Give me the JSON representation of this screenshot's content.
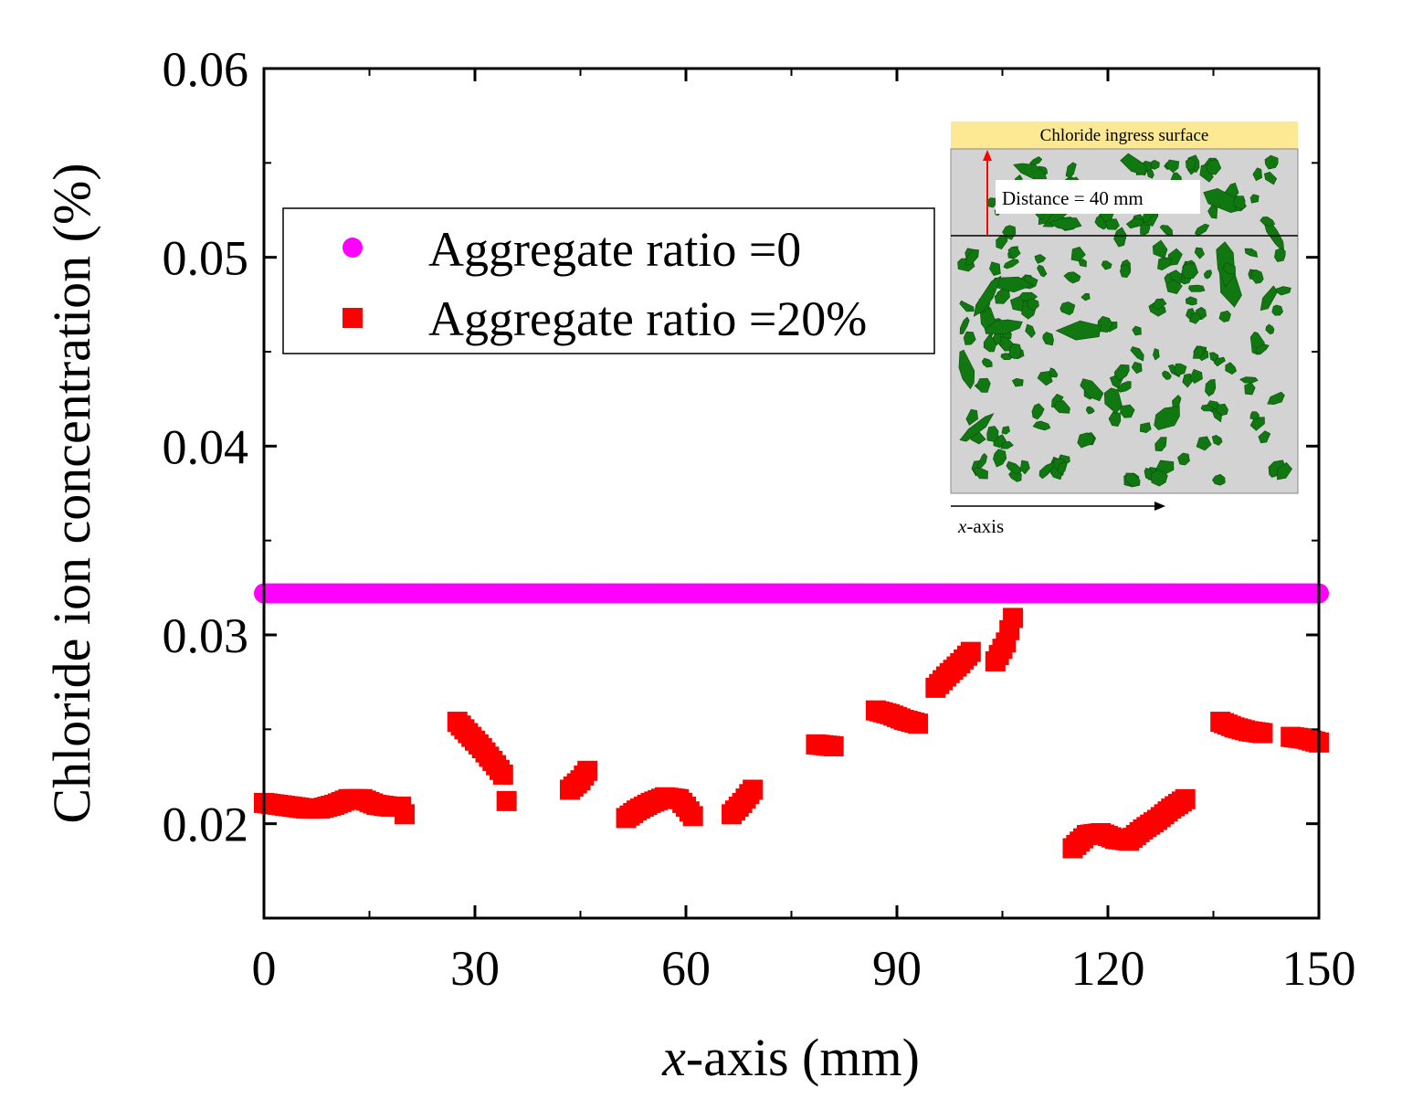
{
  "chart_data": {
    "type": "scatter",
    "xlabel_italic": "x",
    "xlabel_rest": "-axis (mm)",
    "ylabel": "Chloride ion concentration (%)",
    "xlim": [
      0,
      150
    ],
    "ylim": [
      0.015,
      0.06
    ],
    "xticks": [
      0,
      30,
      60,
      90,
      120,
      150
    ],
    "xtick_labels": [
      "0",
      "30",
      "60",
      "90",
      "120",
      "150"
    ],
    "yticks": [
      0.02,
      0.03,
      0.04,
      0.05,
      0.06
    ],
    "ytick_labels": [
      "0.02",
      "0.03",
      "0.04",
      "0.05",
      "0.06"
    ],
    "legend": {
      "position": "upper-left",
      "entries": [
        {
          "label": "Aggregate ratio =0",
          "color": "#ff00ff",
          "marker": "circle"
        },
        {
          "label": "Aggregate ratio =20%",
          "color": "#ff0000",
          "marker": "square"
        }
      ]
    },
    "series": [
      {
        "name": "Aggregate ratio =0",
        "color": "#ff00ff",
        "marker": "circle",
        "x_start": 0,
        "x_end": 150,
        "x_step": 0.5,
        "y": 0.0322
      },
      {
        "name": "Aggregate ratio =20%",
        "color": "#ff0000",
        "marker": "square",
        "segments": [
          [
            [
              0,
              0.0211
            ],
            [
              2,
              0.021
            ],
            [
              4,
              0.0209
            ],
            [
              6,
              0.0208
            ],
            [
              8,
              0.0208
            ],
            [
              10,
              0.021
            ],
            [
              12,
              0.0213
            ],
            [
              14,
              0.0213
            ],
            [
              16,
              0.021
            ],
            [
              18,
              0.0209
            ],
            [
              19.5,
              0.0209
            ],
            [
              20,
              0.0205
            ]
          ],
          [
            [
              27.5,
              0.0254
            ],
            [
              29,
              0.0248
            ],
            [
              31,
              0.024
            ],
            [
              33,
              0.0231
            ],
            [
              34,
              0.0226
            ]
          ],
          [
            [
              34.5,
              0.0212
            ]
          ],
          [
            [
              43.5,
              0.0218
            ],
            [
              45,
              0.0223
            ],
            [
              46,
              0.0228
            ]
          ],
          [
            [
              51.5,
              0.0203
            ],
            [
              53,
              0.0207
            ],
            [
              55,
              0.0211
            ],
            [
              57,
              0.0214
            ],
            [
              59,
              0.0213
            ],
            [
              60,
              0.0209
            ],
            [
              61,
              0.0204
            ]
          ],
          [
            [
              66.5,
              0.0205
            ],
            [
              68,
              0.0211
            ],
            [
              69.5,
              0.0218
            ]
          ],
          [
            [
              78.5,
              0.0242
            ],
            [
              81,
              0.0241
            ]
          ],
          [
            [
              87,
              0.026
            ],
            [
              89,
              0.0258
            ],
            [
              91,
              0.0255
            ],
            [
              93,
              0.0253
            ]
          ],
          [
            [
              95.5,
              0.0272
            ],
            [
              97,
              0.0278
            ],
            [
              99,
              0.0285
            ],
            [
              100.5,
              0.0291
            ]
          ],
          [
            [
              104,
              0.0286
            ],
            [
              105.5,
              0.0296
            ],
            [
              106.5,
              0.0309
            ]
          ],
          [
            [
              115,
              0.0187
            ],
            [
              117,
              0.0194
            ],
            [
              119,
              0.0195
            ],
            [
              121,
              0.0192
            ],
            [
              123,
              0.0191
            ],
            [
              125,
              0.0197
            ],
            [
              127,
              0.0202
            ],
            [
              129,
              0.0208
            ],
            [
              131,
              0.0213
            ]
          ],
          [
            [
              136,
              0.0254
            ],
            [
              138,
              0.0251
            ],
            [
              140,
              0.0249
            ],
            [
              142,
              0.0248
            ]
          ],
          [
            [
              146,
              0.0246
            ],
            [
              148,
              0.0245
            ],
            [
              150,
              0.0243
            ]
          ]
        ]
      }
    ],
    "inset": {
      "surface_label": "Chloride ingress surface",
      "distance_label": "Distance = 40 mm",
      "axis_italic": "x",
      "axis_rest": "-axis",
      "surface_color": "#fde893",
      "matrix_color": "#d3d3d3",
      "aggregate_color": "#117711"
    }
  }
}
